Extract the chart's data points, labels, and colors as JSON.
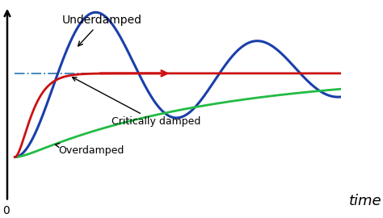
{
  "background_color": "#ffffff",
  "plot_bg_color": "#ffffff",
  "steady_state": 1.0,
  "t_max": 15.0,
  "underdamped": {
    "color": "#1a3faa",
    "linewidth": 2.2,
    "zeta": 0.1,
    "omega_n": 0.85,
    "label": "Underdamped"
  },
  "critically_damped": {
    "color": "#cc1111",
    "linewidth": 2.0,
    "label": "Critically damped",
    "omega_n": 2.2
  },
  "overdamped": {
    "color": "#22bb44",
    "linewidth": 2.0,
    "label": "Overdamped",
    "zeta": 2.5,
    "omega_n": 0.55
  },
  "dashed_line": {
    "color": "#4488bb",
    "linewidth": 1.4,
    "linestyle": "-."
  },
  "arrow_color": "#cc1111",
  "xlabel": "time",
  "xlabel_fontsize": 13,
  "label_fontsize": 9,
  "origin_label": "0"
}
